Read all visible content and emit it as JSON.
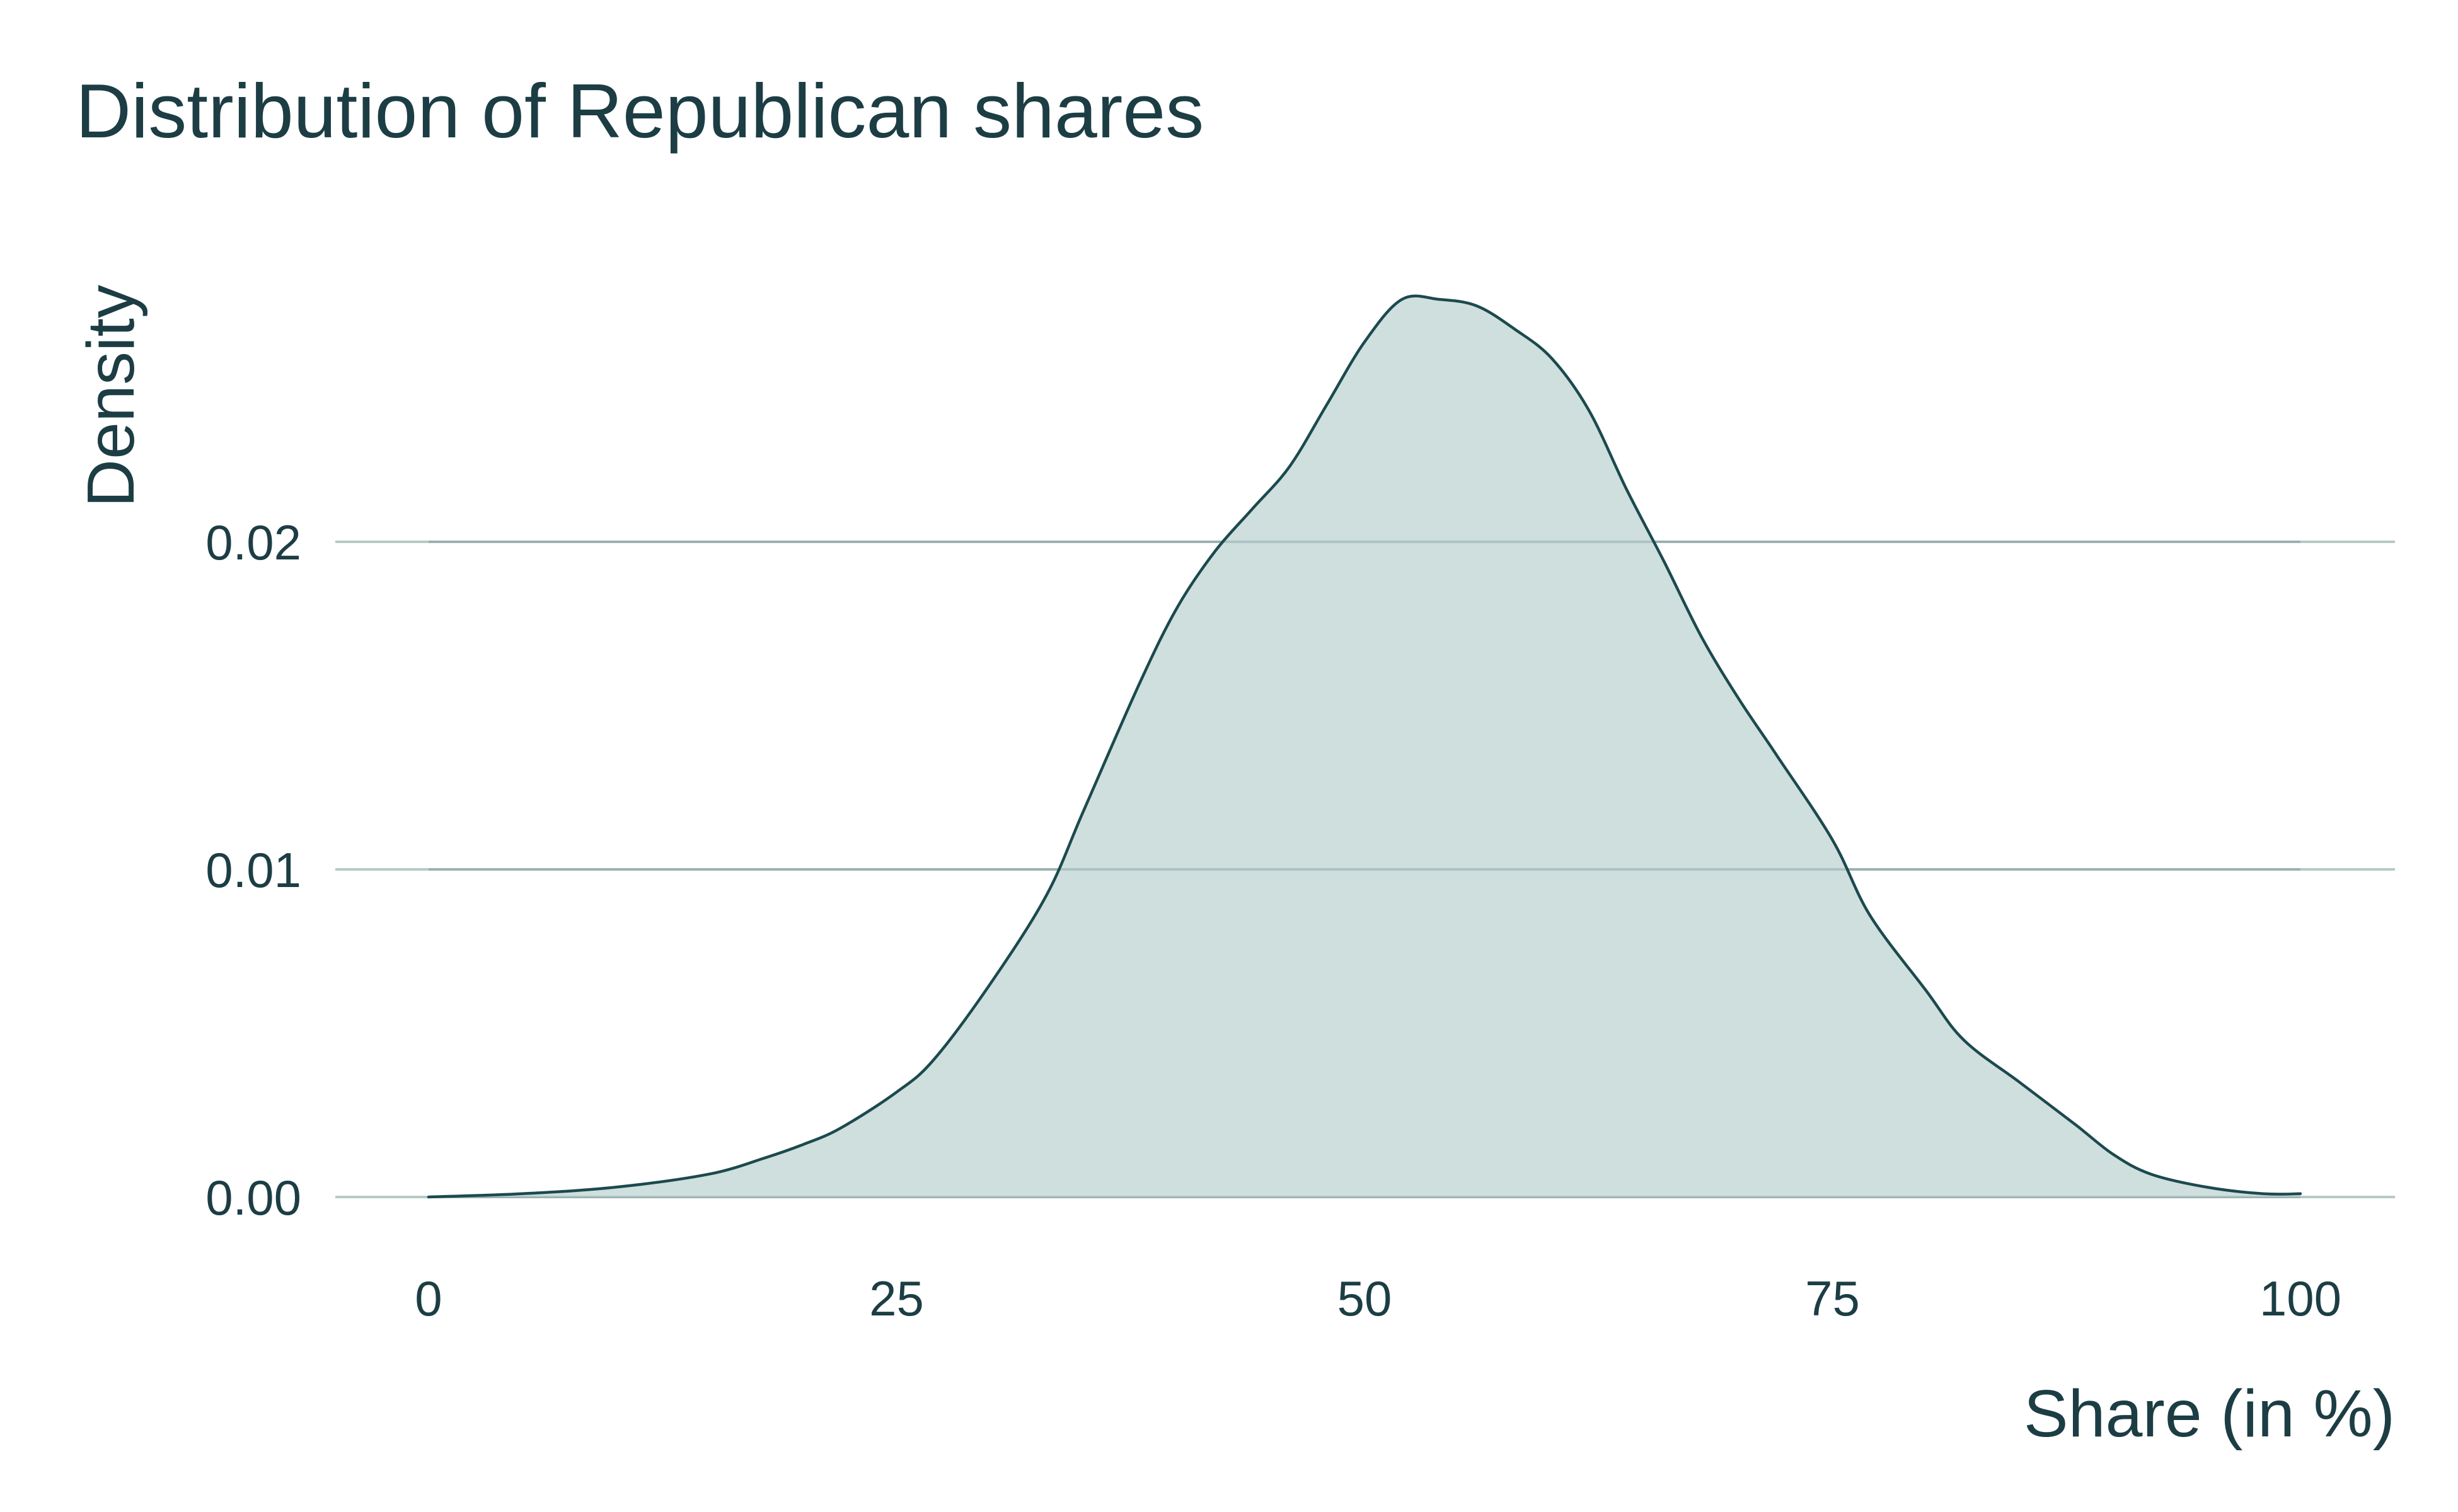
{
  "chart_data": {
    "type": "area",
    "title": "Distribution of Republican shares",
    "xlabel": "Share (in %)",
    "ylabel": "Density",
    "xlim": [
      0,
      100
    ],
    "ylim": [
      0,
      0.0275
    ],
    "xticks": [
      0,
      25,
      50,
      75,
      100
    ],
    "xtick_labels": [
      "0",
      "25",
      "50",
      "75",
      "100"
    ],
    "yticks": [
      0,
      0.01,
      0.02
    ],
    "ytick_labels": [
      "0.00",
      "0.01",
      "0.02"
    ],
    "grid": "horizontal",
    "legend": "none",
    "colors": {
      "text": "#1c3d44",
      "fill": "#cfdfde",
      "line": "#1c4a4e",
      "grid": "#b6c9c7"
    },
    "series": [
      {
        "x": [
          0,
          5,
          10,
          15,
          18,
          20,
          22,
          25,
          27,
          30,
          33,
          35,
          38,
          40,
          42,
          44,
          46,
          48,
          50,
          52,
          54,
          56,
          58,
          60,
          62,
          64,
          66,
          68,
          70,
          72,
          75,
          77,
          80,
          82,
          85,
          88,
          90,
          92,
          95,
          98,
          100
        ],
        "y": [
          0.0,
          0.0001,
          0.0003,
          0.0007,
          0.0012,
          0.0016,
          0.0021,
          0.0032,
          0.0042,
          0.0065,
          0.0092,
          0.0118,
          0.0157,
          0.018,
          0.0197,
          0.021,
          0.0223,
          0.0242,
          0.0261,
          0.0274,
          0.0274,
          0.0272,
          0.0265,
          0.0256,
          0.024,
          0.0216,
          0.0194,
          0.0171,
          0.0152,
          0.0135,
          0.0109,
          0.0086,
          0.0063,
          0.0048,
          0.0035,
          0.0022,
          0.0013,
          0.0007,
          0.0003,
          0.0001,
          0.0001
        ]
      }
    ]
  }
}
